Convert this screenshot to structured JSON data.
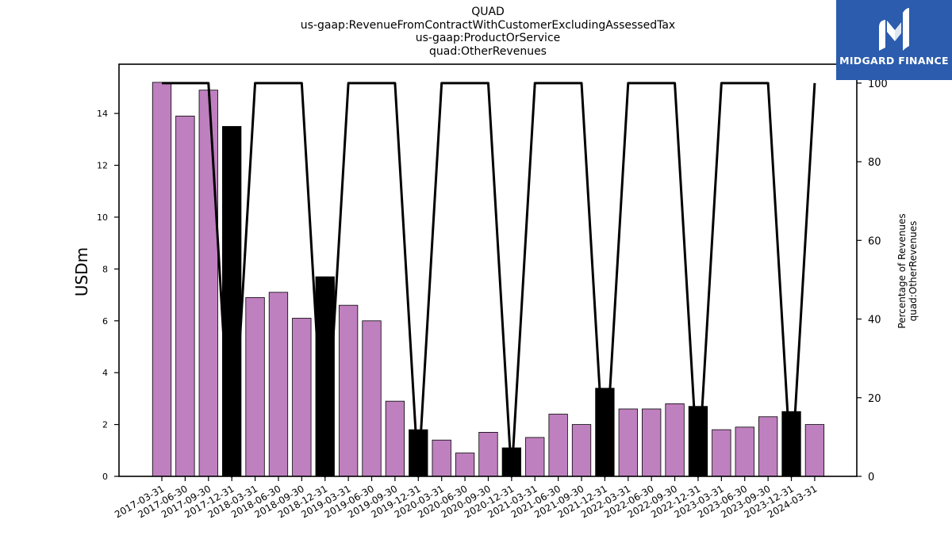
{
  "title_lines": [
    "QUAD",
    "us-gaap:RevenueFromContractWithCustomerExcludingAssessedTax",
    "us-gaap:ProductOrService",
    "quad:OtherRevenues"
  ],
  "logo": {
    "text": "MIDGARD FINANCE",
    "icon": "midgard-logo-icon",
    "bg": "#2b5cad"
  },
  "chart_data": {
    "type": "bar",
    "categories": [
      "2017-03-31",
      "2017-06-30",
      "2017-09-30",
      "2017-12-31",
      "2018-03-31",
      "2018-06-30",
      "2018-09-30",
      "2018-12-31",
      "2019-03-31",
      "2019-06-30",
      "2019-09-30",
      "2019-12-31",
      "2020-03-31",
      "2020-06-30",
      "2020-09-30",
      "2020-12-31",
      "2021-03-31",
      "2021-06-30",
      "2021-09-30",
      "2021-12-31",
      "2022-03-31",
      "2022-06-30",
      "2022-09-30",
      "2022-12-31",
      "2023-03-31",
      "2023-06-30",
      "2023-09-30",
      "2023-12-31",
      "2024-03-31"
    ],
    "series": [
      {
        "type": "bar",
        "axis": "left",
        "values": [
          15.2,
          13.9,
          14.9,
          13.5,
          6.9,
          7.1,
          6.1,
          7.7,
          6.6,
          6.0,
          2.9,
          1.8,
          1.4,
          0.9,
          1.7,
          1.1,
          1.5,
          2.4,
          2.0,
          3.4,
          2.6,
          2.6,
          2.8,
          2.7,
          1.8,
          1.9,
          2.3,
          2.5,
          2.0
        ],
        "colors": [
          "#bf80bf",
          "#bf80bf",
          "#bf80bf",
          "#000000",
          "#bf80bf",
          "#bf80bf",
          "#bf80bf",
          "#000000",
          "#bf80bf",
          "#bf80bf",
          "#bf80bf",
          "#000000",
          "#bf80bf",
          "#bf80bf",
          "#bf80bf",
          "#000000",
          "#bf80bf",
          "#bf80bf",
          "#bf80bf",
          "#000000",
          "#bf80bf",
          "#bf80bf",
          "#bf80bf",
          "#000000",
          "#bf80bf",
          "#bf80bf",
          "#bf80bf",
          "#000000",
          "#bf80bf"
        ]
      },
      {
        "type": "line",
        "axis": "right",
        "color": "#000000",
        "values": [
          100,
          100,
          100,
          0,
          100,
          100,
          100,
          0,
          100,
          100,
          100,
          0,
          100,
          100,
          100,
          0,
          100,
          100,
          100,
          0,
          100,
          100,
          100,
          0,
          100,
          100,
          100,
          0,
          100
        ]
      }
    ],
    "ylabel": "USDm",
    "ylim": [
      0,
      15.9
    ],
    "yticks": [
      0,
      2,
      4,
      6,
      8,
      10,
      12,
      14
    ],
    "y2label_lines": [
      "Percentage of Revenues",
      "quad:OtherRevenues"
    ],
    "y2lim": [
      0,
      104.8
    ],
    "y2ticks": [
      0,
      20,
      40,
      60,
      80,
      100
    ],
    "grid": false,
    "bar_edge_color": "#000000"
  }
}
